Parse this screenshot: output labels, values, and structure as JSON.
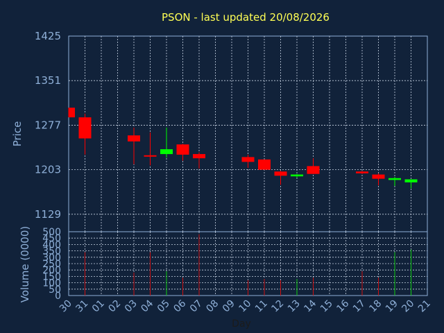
{
  "chart_data": {
    "type": "candlestick",
    "title": "PSON - last updated 20/08/2026",
    "price_panel": {
      "ylabel": "Price",
      "ylim": [
        1100,
        1425
      ],
      "yticks": [
        1129,
        1203,
        1277,
        1351,
        1425
      ],
      "ytick_labels": [
        "1129",
        "1203",
        "1277",
        "1351",
        "1425"
      ],
      "grid": true
    },
    "volume_panel": {
      "ylabel": "Volume (0000)",
      "ylim": [
        0,
        500
      ],
      "yticks": [
        0,
        50,
        100,
        150,
        200,
        250,
        300,
        350,
        400,
        450,
        500
      ],
      "ytick_labels": [
        "0",
        "50",
        "100",
        "150",
        "200",
        "250",
        "300",
        "350",
        "400",
        "450",
        "500"
      ],
      "grid": true
    },
    "xlabel": "Day",
    "x_ticks": [
      "30",
      "31",
      "01",
      "02",
      "03",
      "04",
      "05",
      "06",
      "07",
      "08",
      "09",
      "10",
      "11",
      "12",
      "13",
      "14",
      "15",
      "16",
      "17",
      "18",
      "19",
      "20",
      "21"
    ],
    "up_color": "#00ff00",
    "down_color": "#ff0000",
    "candles": [
      {
        "x": "30",
        "open": 1306,
        "close": 1290,
        "high": 1306,
        "low": 1290,
        "volume": 0
      },
      {
        "x": "31",
        "open": 1290,
        "close": 1255,
        "high": 1296,
        "low": 1228,
        "volume": 340
      },
      {
        "x": "03",
        "open": 1260,
        "close": 1250,
        "high": 1273,
        "low": 1212,
        "volume": 180
      },
      {
        "x": "04",
        "open": 1227,
        "close": 1226,
        "high": 1265,
        "low": 1210,
        "volume": 340
      },
      {
        "x": "05",
        "open": 1229,
        "close": 1237,
        "high": 1273,
        "low": 1223,
        "volume": 190
      },
      {
        "x": "06",
        "open": 1245,
        "close": 1228,
        "high": 1246,
        "low": 1218,
        "volume": 140
      },
      {
        "x": "07",
        "open": 1229,
        "close": 1222,
        "high": 1232,
        "low": 1205,
        "volume": 480
      },
      {
        "x": "10",
        "open": 1224,
        "close": 1216,
        "high": 1228,
        "low": 1206,
        "volume": 120
      },
      {
        "x": "11",
        "open": 1220,
        "close": 1203,
        "high": 1220,
        "low": 1203,
        "volume": 130
      },
      {
        "x": "12",
        "open": 1200,
        "close": 1193,
        "high": 1201,
        "low": 1178,
        "volume": 120
      },
      {
        "x": "13",
        "open": 1192,
        "close": 1195,
        "high": 1196,
        "low": 1190,
        "volume": 130
      },
      {
        "x": "14",
        "open": 1209,
        "close": 1196,
        "high": 1222,
        "low": 1196,
        "volume": 140
      },
      {
        "x": "17",
        "open": 1200,
        "close": 1197,
        "high": 1201,
        "low": 1196,
        "volume": 190
      },
      {
        "x": "18",
        "open": 1195,
        "close": 1188,
        "high": 1197,
        "low": 1177,
        "volume": 140
      },
      {
        "x": "19",
        "open": 1186,
        "close": 1189,
        "high": 1191,
        "low": 1176,
        "volume": 340
      },
      {
        "x": "20",
        "open": 1182,
        "close": 1187,
        "high": 1187,
        "low": 1172,
        "volume": 360
      }
    ]
  }
}
